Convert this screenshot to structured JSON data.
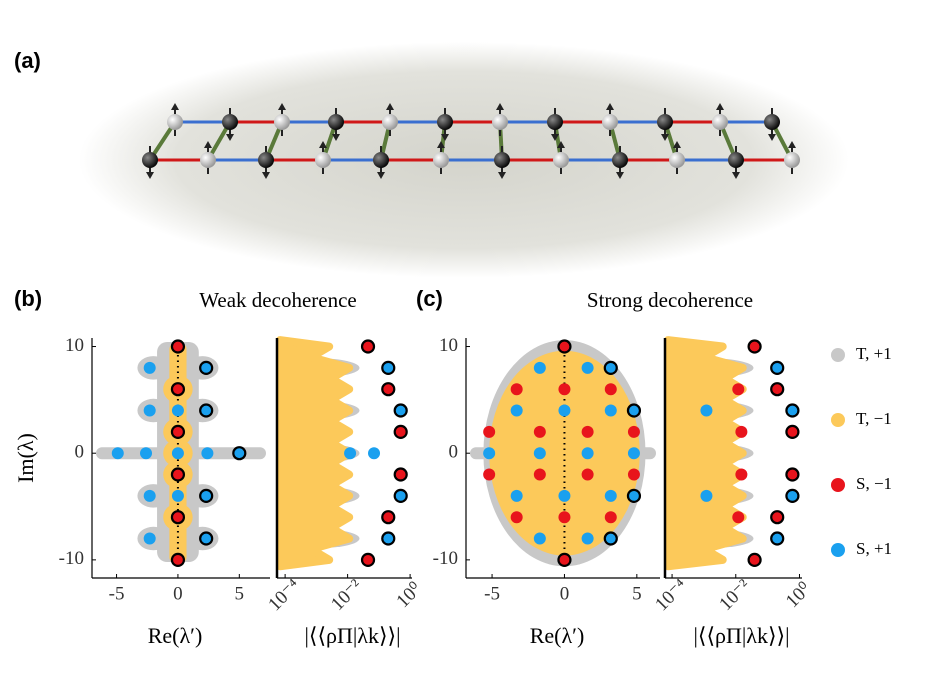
{
  "labels": {
    "a": "(a)",
    "b": "(b)",
    "c": "(c)"
  },
  "titles": [
    "Weak decoherence",
    "Strong decoherence"
  ],
  "legend": [
    {
      "name": "T, +1",
      "color": "#c8c8c8"
    },
    {
      "name": "T, −1",
      "color": "#fcc95a"
    },
    {
      "name": "S, −1",
      "color": "#e8141c"
    },
    {
      "name": "S, +1",
      "color": "#1aa0ef"
    }
  ],
  "chart_data": [
    {
      "type": "scatter",
      "xlabel": "Re(λ′)",
      "ylabel": "Im(λ)",
      "xlim": [
        -7,
        7.5
      ],
      "ylim": [
        -11.7,
        10.8
      ],
      "xticks": [
        -5,
        0,
        5
      ],
      "yticks": [
        -10,
        0,
        10
      ],
      "series": [
        {
          "color": "#e8141c",
          "x": [
            0,
            0,
            0,
            0,
            0,
            0
          ],
          "values": [
            10,
            6,
            2,
            -2,
            -6,
            -10
          ],
          "edgecolors": [
            "#000",
            "#000",
            "#000",
            "#000",
            "#000",
            "#000"
          ]
        },
        {
          "color": "#1aa0ef",
          "x": [
            2.3,
            2.3,
            2.3,
            2.3,
            5,
            -2.3,
            -2.3,
            -2.3,
            -2.3,
            0,
            0,
            -4.9,
            -2.6,
            0,
            2.4
          ],
          "values": [
            8,
            4,
            -4,
            -8,
            0,
            8,
            4,
            -4,
            -8,
            4,
            -4,
            0,
            0,
            0,
            0
          ],
          "edgecolors": [
            "#000",
            "#000",
            "#000",
            "#000",
            "#000",
            null,
            null,
            null,
            null,
            null,
            null,
            null,
            null,
            null,
            null
          ]
        }
      ]
    },
    {
      "type": "scatter",
      "xlabel": "|⟨⟨ρΠ|λk⟩⟩|",
      "xscale": "log",
      "xlim": [
        5.5e-05,
        1.15
      ],
      "ylim": [
        -11.7,
        10.8
      ],
      "xticks": [
        {
          "value": 0.0001,
          "label": "10⁻⁴"
        },
        {
          "value": 0.01,
          "label": "10⁻²"
        },
        {
          "value": 1,
          "label": "10⁰"
        }
      ],
      "series": [
        {
          "color": "#e8141c",
          "x": [
            0.045,
            0.2,
            0.5,
            0.5,
            0.2,
            0.045
          ],
          "values": [
            10,
            6,
            2,
            -2,
            -6,
            -10
          ],
          "edgecolors": [
            "#000",
            "#000",
            "#000",
            "#000",
            "#000",
            "#000"
          ]
        },
        {
          "color": "#1aa0ef",
          "x": [
            0.2,
            0.5,
            0.5,
            0.2,
            0.012,
            0.07
          ],
          "values": [
            8,
            4,
            -4,
            -8,
            0,
            0
          ],
          "edgecolors": [
            "#000",
            "#000",
            "#000",
            "#000",
            null,
            null
          ]
        }
      ]
    },
    {
      "type": "scatter",
      "xlabel": "Re(λ′)",
      "xlim": [
        -6.8,
        6.6
      ],
      "ylim": [
        -11.7,
        10.8
      ],
      "xticks": [
        -5,
        0,
        5
      ],
      "yticks": [
        -10,
        0,
        10
      ],
      "series": [
        {
          "color": "#e8141c",
          "x": [
            0,
            0,
            -3.3,
            0,
            3.2,
            -5.2,
            -1.7,
            1.6,
            4.8,
            -5.2,
            -1.7,
            1.6,
            4.8,
            -3.3,
            0,
            3.2
          ],
          "values": [
            10,
            -10,
            6,
            6,
            6,
            2,
            2,
            2,
            2,
            -2,
            -2,
            -2,
            -2,
            -6,
            -6,
            -6
          ],
          "edgecolors": [
            "#000",
            "#000",
            null,
            null,
            null,
            null,
            null,
            null,
            null,
            null,
            null,
            null,
            null,
            null,
            null,
            null
          ]
        },
        {
          "color": "#1aa0ef",
          "x": [
            3.2,
            4.8,
            4.8,
            3.2,
            -1.7,
            1.6,
            -3.3,
            0,
            3.2,
            -5.2,
            -1.7,
            1.6,
            4.8,
            -3.3,
            0,
            3.2,
            -1.7,
            1.6
          ],
          "values": [
            8,
            4,
            -4,
            -8,
            8,
            8,
            4,
            4,
            4,
            0,
            0,
            0,
            0,
            -4,
            -4,
            -4,
            -8,
            -8
          ],
          "edgecolors": [
            "#000",
            "#000",
            "#000",
            "#000",
            null,
            null,
            null,
            null,
            null,
            null,
            null,
            null,
            null,
            null,
            null,
            null,
            null,
            null
          ]
        }
      ]
    },
    {
      "type": "scatter",
      "xlabel": "|⟨⟨ρΠ|λk⟩⟩|",
      "xscale": "log",
      "xlim": [
        6e-05,
        1.2
      ],
      "ylim": [
        -11.7,
        10.8
      ],
      "xticks": [
        {
          "value": 0.0001,
          "label": "10⁻⁴"
        },
        {
          "value": 0.01,
          "label": "10⁻²"
        },
        {
          "value": 1,
          "label": "10⁰"
        }
      ],
      "series": [
        {
          "color": "#e8141c",
          "x": [
            0.039,
            0.2,
            0.6,
            0.6,
            0.2,
            0.039,
            0.012,
            0.015,
            0.015,
            0.012
          ],
          "values": [
            10,
            6,
            2,
            -2,
            -6,
            -10,
            6,
            2,
            -2,
            -6
          ],
          "edgecolors": [
            "#000",
            "#000",
            "#000",
            "#000",
            "#000",
            "#000",
            null,
            null,
            null,
            null
          ]
        },
        {
          "color": "#1aa0ef",
          "x": [
            0.2,
            0.6,
            0.6,
            0.2,
            0.0012,
            0.0012
          ],
          "values": [
            8,
            4,
            -4,
            -8,
            4,
            -4
          ],
          "edgecolors": [
            "#000",
            "#000",
            "#000",
            "#000",
            null,
            null
          ]
        }
      ]
    }
  ]
}
